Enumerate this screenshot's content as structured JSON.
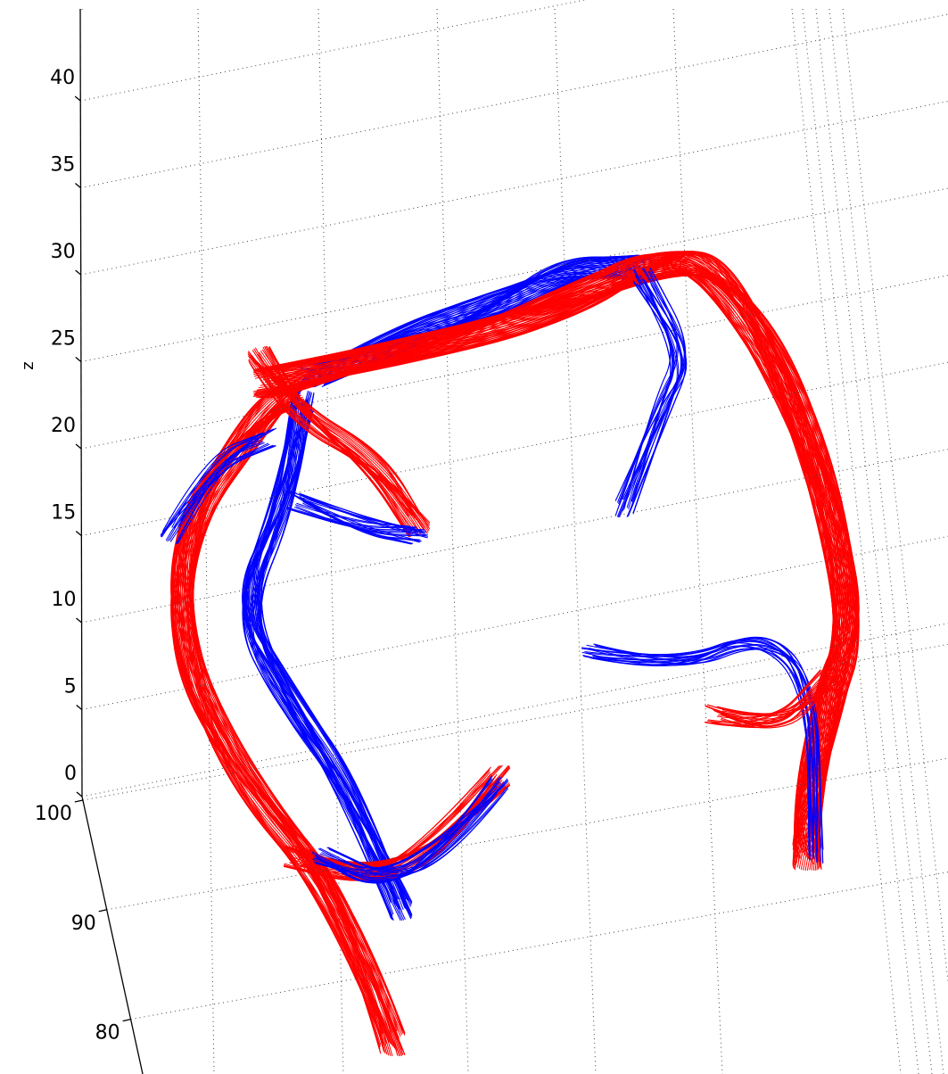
{
  "chart_data": {
    "type": "line3d",
    "zlabel": "z",
    "zlim": [
      0,
      44
    ],
    "zticks": [
      0,
      5,
      10,
      15,
      20,
      25,
      30,
      35,
      40
    ],
    "ylim": [
      75,
      100
    ],
    "yticks": [
      80,
      90,
      100
    ],
    "grid": true
  }
}
